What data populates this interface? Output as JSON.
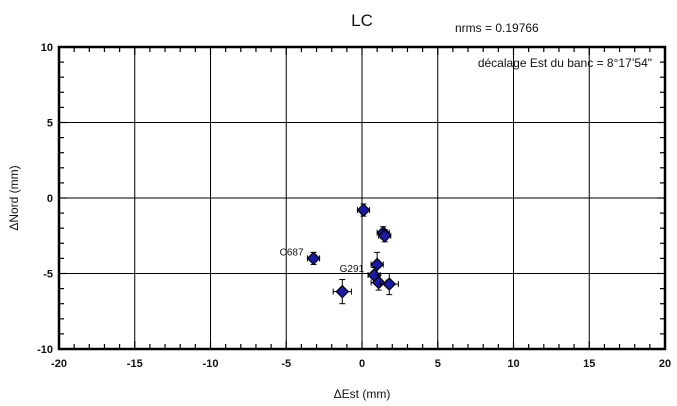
{
  "chart_data": {
    "type": "scatter",
    "title": "LC",
    "xlabel": "ΔEst (mm)",
    "ylabel": "ΔNord (mm)",
    "xlim": [
      -20,
      20
    ],
    "ylim": [
      -10,
      10
    ],
    "grid": true,
    "x_ticks": [
      "-20",
      "-15",
      "-10",
      "-5",
      "0",
      "5",
      "10",
      "15",
      "20"
    ],
    "y_ticks": [
      "10",
      "5",
      "0",
      "-5",
      "-10"
    ],
    "annotations": {
      "nrms": "nrms = 0.19766",
      "offset": "décalage Est du banc = 8°17’54\""
    },
    "marker_color": "#1a1aa6",
    "points": [
      {
        "x": 0.1,
        "y": -0.8,
        "ex": 0.4,
        "ey": 0.4,
        "label": ""
      },
      {
        "x": 1.4,
        "y": -2.3,
        "ex": 0.4,
        "ey": 0.4,
        "label": ""
      },
      {
        "x": 1.5,
        "y": -2.5,
        "ex": 0.4,
        "ey": 0.4,
        "label": ""
      },
      {
        "x": -3.2,
        "y": -4.0,
        "ex": 0.4,
        "ey": 0.4,
        "label": "C687"
      },
      {
        "x": 1.0,
        "y": -4.4,
        "ex": 0.4,
        "ey": 0.8,
        "label": ""
      },
      {
        "x": 0.8,
        "y": -5.1,
        "ex": 0.4,
        "ey": 0.5,
        "label": "G291"
      },
      {
        "x": 1.1,
        "y": -5.6,
        "ex": 0.5,
        "ey": 0.5,
        "label": ""
      },
      {
        "x": 1.8,
        "y": -5.7,
        "ex": 0.6,
        "ey": 0.7,
        "label": ""
      },
      {
        "x": -1.3,
        "y": -6.2,
        "ex": 0.6,
        "ey": 0.8,
        "label": ""
      }
    ]
  }
}
